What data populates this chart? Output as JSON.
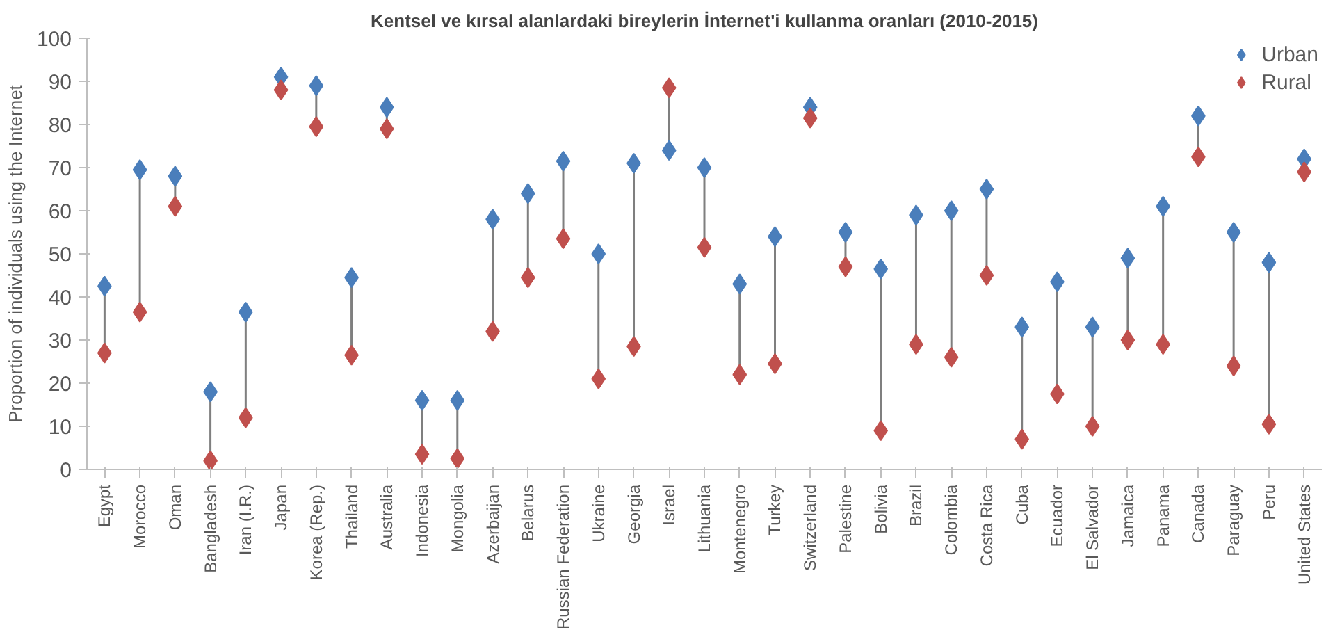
{
  "chart_data": {
    "type": "scatter",
    "title": "Kentsel ve kırsal alanlardaki bireylerin İnternet'i kullanma oranları (2010-2015)",
    "ylabel": "Proportion of individuals using the Internet",
    "categories": [
      "Egypt",
      "Morocco",
      "Oman",
      "Bangladesh",
      "Iran (I.R.)",
      "Japan",
      "Korea (Rep.)",
      "Thailand",
      "Australia",
      "Indonesia",
      "Mongolia",
      "Azerbaijan",
      "Belarus",
      "Russian Federation",
      "Ukraine",
      "Georgia",
      "Israel",
      "Lithuania",
      "Montenegro",
      "Turkey",
      "Switzerland",
      "Palestine",
      "Bolivia",
      "Brazil",
      "Colombia",
      "Costa Rica",
      "Cuba",
      "Ecuador",
      "El Salvador",
      "Jamaica",
      "Panama",
      "Canada",
      "Paraguay",
      "Peru",
      "United States"
    ],
    "series": [
      {
        "name": "Urban",
        "color": "#4a7ebb",
        "values": [
          42.5,
          69.5,
          68,
          18,
          36.5,
          91,
          89,
          44.5,
          84,
          16,
          16,
          58,
          64,
          71.5,
          50,
          71,
          74,
          70,
          43,
          54,
          84,
          55,
          46.5,
          59,
          60,
          65,
          33,
          43.5,
          33,
          49,
          61,
          82,
          55,
          48,
          72
        ]
      },
      {
        "name": "Rural",
        "color": "#c0504d",
        "values": [
          27,
          36.5,
          61,
          2,
          12,
          88,
          79.5,
          26.5,
          79,
          3.5,
          2.5,
          32,
          44.5,
          53.5,
          21,
          28.5,
          88.5,
          51.5,
          22,
          24.5,
          81.5,
          47,
          9,
          29,
          26,
          45,
          7,
          17.5,
          10,
          30,
          29,
          72.5,
          24,
          10.5,
          69
        ]
      }
    ],
    "ylim": [
      0,
      100
    ],
    "yticks": [
      0,
      10,
      20,
      30,
      40,
      50,
      60,
      70,
      80,
      90,
      100
    ],
    "marker": "diamond",
    "grid": false,
    "legend": "top right"
  }
}
